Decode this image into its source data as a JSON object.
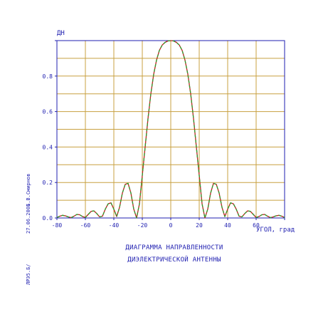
{
  "chart_data": {
    "type": "line",
    "title": "",
    "ylabel": "ДН",
    "xlabel": "УГОЛ, град",
    "xlim": [
      -80,
      80
    ],
    "ylim": [
      0,
      1.0
    ],
    "x_ticks": [
      "-80",
      "-60",
      "-40",
      "-20",
      "0",
      "20",
      "40",
      "60"
    ],
    "y_ticks": [
      "0.0",
      "0.2",
      "0.4",
      "0.6",
      "0.8"
    ],
    "grid": true,
    "series": [
      {
        "name": "",
        "color": "#c02020",
        "style": "solid",
        "x": [
          -80,
          -78,
          -76,
          -74,
          -72,
          -70,
          -68,
          -66,
          -64,
          -62,
          -60,
          -58,
          -56,
          -54,
          -52,
          -50,
          -48,
          -46,
          -44,
          -42,
          -40,
          -38,
          -36,
          -34,
          -32,
          -30,
          -28,
          -26,
          -24,
          -22,
          -20,
          -18,
          -16,
          -14,
          -12,
          -10,
          -8,
          -6,
          -4,
          -2,
          0,
          2,
          4,
          6,
          8,
          10,
          12,
          14,
          16,
          18,
          20,
          22,
          24,
          26,
          28,
          30,
          32,
          34,
          36,
          38,
          40,
          42,
          44,
          46,
          48,
          50,
          52,
          54,
          56,
          58,
          60,
          62,
          64,
          66,
          68,
          70,
          72,
          74,
          76,
          78,
          80
        ],
        "y": [
          0.003,
          0.01,
          0.015,
          0.012,
          0.006,
          0.002,
          0.01,
          0.02,
          0.018,
          0.008,
          0.003,
          0.02,
          0.037,
          0.04,
          0.025,
          0.006,
          0.01,
          0.05,
          0.08,
          0.085,
          0.05,
          0.008,
          0.06,
          0.14,
          0.19,
          0.195,
          0.14,
          0.05,
          0.0,
          0.08,
          0.24,
          0.4,
          0.56,
          0.7,
          0.81,
          0.89,
          0.945,
          0.975,
          0.99,
          0.998,
          1.0,
          0.998,
          0.99,
          0.975,
          0.945,
          0.89,
          0.81,
          0.7,
          0.56,
          0.4,
          0.24,
          0.08,
          0.0,
          0.05,
          0.14,
          0.195,
          0.19,
          0.14,
          0.06,
          0.008,
          0.05,
          0.085,
          0.08,
          0.05,
          0.01,
          0.006,
          0.025,
          0.04,
          0.037,
          0.02,
          0.003,
          0.008,
          0.018,
          0.02,
          0.01,
          0.002,
          0.006,
          0.012,
          0.015,
          0.01,
          0.003
        ]
      },
      {
        "name": "",
        "color": "#2e9e2e",
        "style": "dashed",
        "x": [
          -80,
          -78,
          -76,
          -74,
          -72,
          -70,
          -68,
          -66,
          -64,
          -62,
          -60,
          -58,
          -56,
          -54,
          -52,
          -50,
          -48,
          -46,
          -44,
          -42,
          -40,
          -38,
          -36,
          -34,
          -32,
          -30,
          -28,
          -26,
          -24,
          -22,
          -20,
          -18,
          -16,
          -14,
          -12,
          -10,
          -8,
          -6,
          -4,
          -2,
          0,
          2,
          4,
          6,
          8,
          10,
          12,
          14,
          16,
          18,
          20,
          22,
          24,
          26,
          28,
          30,
          32,
          34,
          36,
          38,
          40,
          42,
          44,
          46,
          48,
          50,
          52,
          54,
          56,
          58,
          60,
          62,
          64,
          66,
          68,
          70,
          72,
          74,
          76,
          78,
          80
        ],
        "y": [
          0.003,
          0.01,
          0.015,
          0.012,
          0.006,
          0.002,
          0.01,
          0.02,
          0.018,
          0.008,
          0.003,
          0.02,
          0.037,
          0.04,
          0.025,
          0.006,
          0.01,
          0.05,
          0.08,
          0.085,
          0.05,
          0.008,
          0.06,
          0.14,
          0.19,
          0.195,
          0.14,
          0.05,
          0.0,
          0.08,
          0.24,
          0.4,
          0.56,
          0.7,
          0.81,
          0.89,
          0.945,
          0.975,
          0.99,
          0.998,
          1.0,
          0.998,
          0.99,
          0.975,
          0.945,
          0.89,
          0.81,
          0.7,
          0.56,
          0.4,
          0.24,
          0.08,
          0.0,
          0.05,
          0.14,
          0.195,
          0.19,
          0.14,
          0.06,
          0.008,
          0.05,
          0.085,
          0.08,
          0.05,
          0.01,
          0.006,
          0.025,
          0.04,
          0.037,
          0.02,
          0.003,
          0.008,
          0.018,
          0.02,
          0.01,
          0.002,
          0.006,
          0.012,
          0.015,
          0.01,
          0.003
        ]
      }
    ],
    "caption_line1": "ДИАГРАММА НАПРАВЛЕННОСТИ",
    "caption_line2": "ДИЭЛЕКТРИЧЕСКОЙ АНТЕННЫ",
    "grid_color": "#c8a040",
    "frame_color": "#1f1fb0"
  },
  "stamp": {
    "author": "ЛРЭ5.Б/",
    "date": "27.06.2001",
    "name": "Б.В.Смирнов"
  }
}
